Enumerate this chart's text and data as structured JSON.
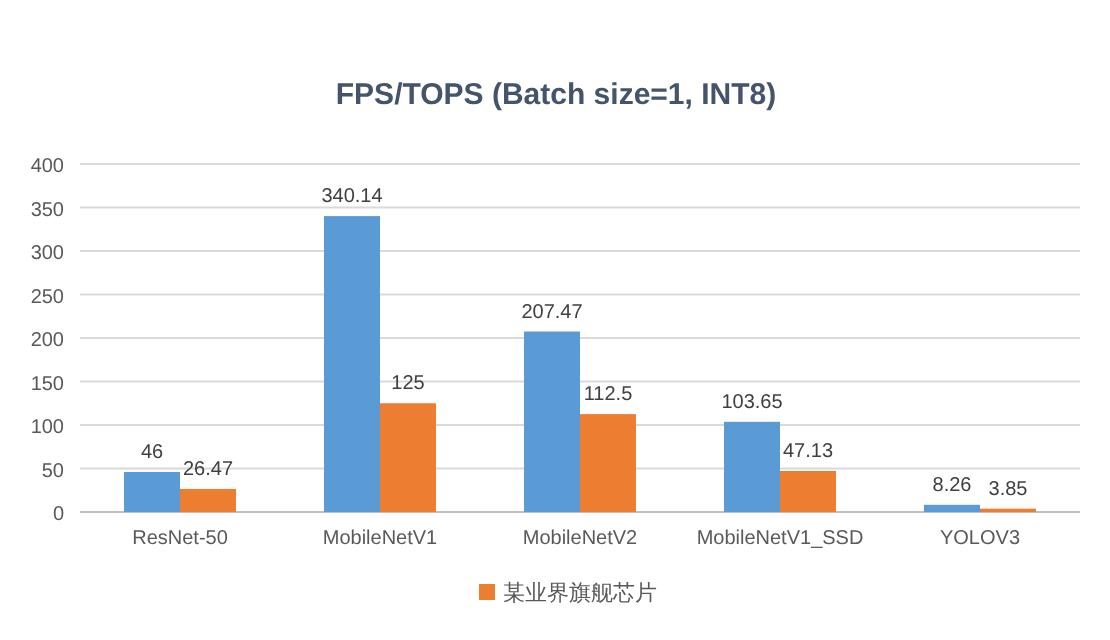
{
  "chart_data": {
    "type": "bar",
    "subtitle": "FPS/TOPS (Batch size=1, INT8)",
    "categories": [
      "ResNet-50",
      "MobileNetV1",
      "MobileNetV2",
      "MobileNetV1_SSD",
      "YOLOV3"
    ],
    "series": [
      {
        "color": "#5b9bd5",
        "values": [
          46,
          340.14,
          207.47,
          103.65,
          8.26
        ]
      },
      {
        "name": "某业界旗舰芯片",
        "color": "#ed7d31",
        "values": [
          26.47,
          125,
          112.5,
          47.13,
          3.85
        ]
      }
    ],
    "ylim": [
      0,
      400
    ],
    "yticks": [
      0,
      50,
      100,
      150,
      200,
      250,
      300,
      350,
      400
    ],
    "grid": "y",
    "legend": "bottom",
    "data_labels": true
  }
}
